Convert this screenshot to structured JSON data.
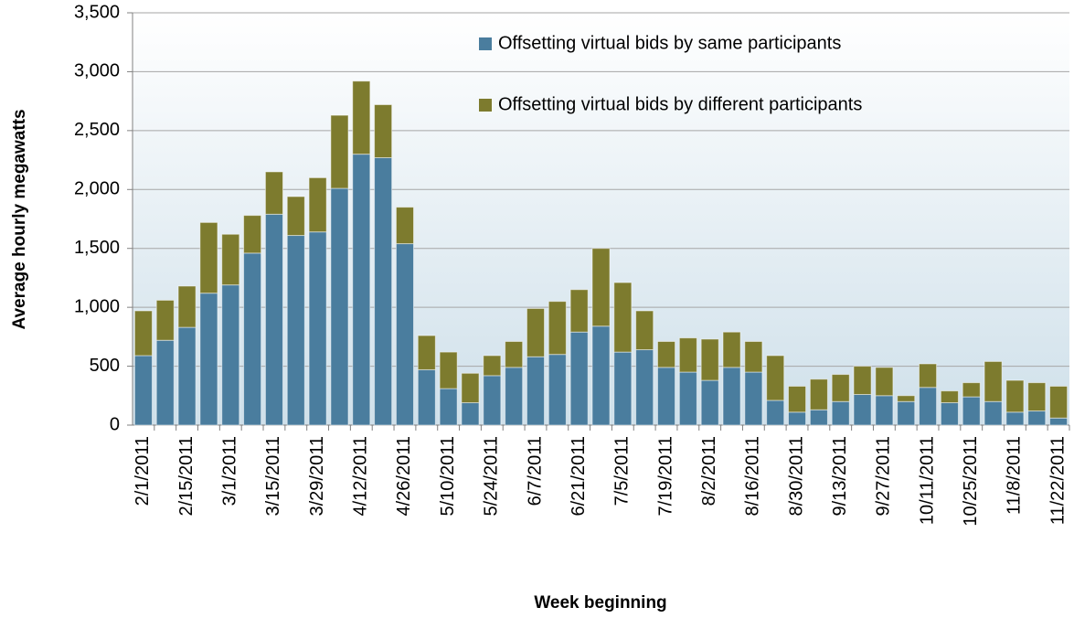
{
  "chart_data": {
    "type": "stacked_bar",
    "y_label": "Average hourly megawatts",
    "x_label": "Week beginning",
    "categories": [
      "2/1/2011",
      null,
      "2/15/2011",
      null,
      "3/1/2011",
      null,
      "3/15/2011",
      null,
      "3/29/2011",
      null,
      "4/12/2011",
      null,
      "4/26/2011",
      null,
      "5/10/2011",
      null,
      "5/24/2011",
      null,
      "6/7/2011",
      null,
      "6/21/2011",
      null,
      "7/5/2011",
      null,
      "7/19/2011",
      null,
      "8/2/2011",
      null,
      "8/16/2011",
      null,
      "8/30/2011",
      null,
      "9/13/2011",
      null,
      "9/27/2011",
      null,
      "10/11/2011",
      null,
      "10/25/2011",
      null,
      "11/8/2011",
      null,
      "11/22/2011"
    ],
    "series": [
      {
        "name": "Offsetting virtual bids by same participants",
        "color": "#4a7d9e",
        "values": [
          590,
          720,
          830,
          1120,
          1190,
          1460,
          1790,
          1610,
          1640,
          2010,
          2300,
          2270,
          1540,
          470,
          310,
          190,
          420,
          490,
          580,
          600,
          790,
          840,
          620,
          640,
          490,
          450,
          380,
          490,
          450,
          210,
          110,
          130,
          200,
          260,
          250,
          200,
          320,
          190,
          240,
          200,
          110,
          120,
          60
        ]
      },
      {
        "name": "Offsetting virtual bids by different participants",
        "color": "#7d7b2e",
        "values": [
          380,
          340,
          350,
          600,
          430,
          320,
          360,
          330,
          460,
          620,
          620,
          450,
          310,
          290,
          310,
          250,
          170,
          220,
          410,
          450,
          360,
          660,
          590,
          330,
          220,
          290,
          350,
          300,
          260,
          380,
          220,
          260,
          230,
          240,
          240,
          50,
          200,
          100,
          120,
          340,
          270,
          240,
          270
        ]
      }
    ],
    "ylim": [
      0,
      3500
    ],
    "yticks": [
      0,
      500,
      {
        "value": 1000,
        "label": "1,000"
      },
      {
        "value": 1500,
        "label": "1,500"
      },
      {
        "value": 2000,
        "label": "2,000"
      },
      {
        "value": 2500,
        "label": "2,500"
      },
      {
        "value": 3000,
        "label": "3,000"
      },
      {
        "value": 3500,
        "label": "3,500"
      }
    ],
    "grid": true
  }
}
